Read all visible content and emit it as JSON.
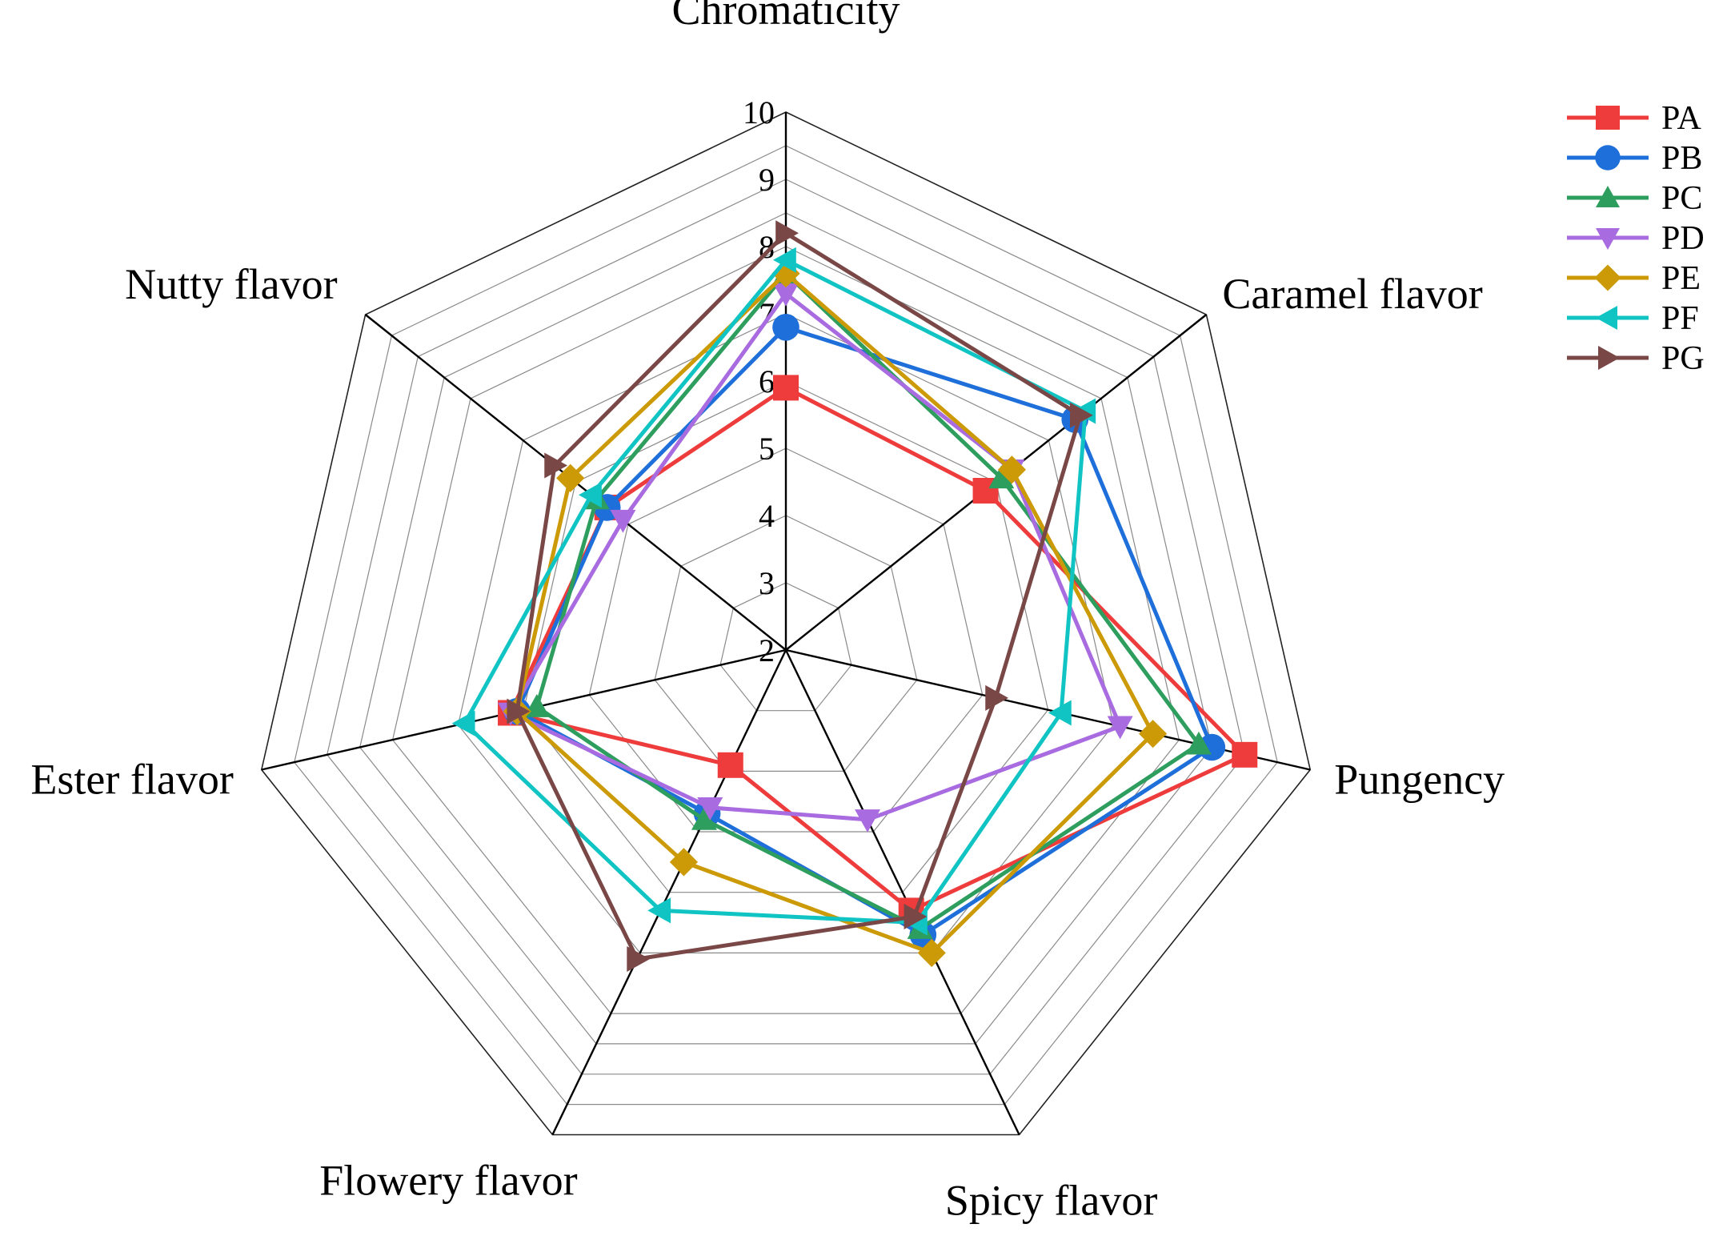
{
  "chart_data": {
    "type": "radar",
    "title": "",
    "axes": [
      "Chromaticity",
      "Caramel flavor",
      "Pungency",
      "Spicy flavor",
      "Flowery flavor",
      "Ester flavor",
      "Nutty flavor"
    ],
    "rlim": [
      2,
      10
    ],
    "ticks": [
      "2",
      "3",
      "4",
      "5",
      "6",
      "7",
      "8",
      "9",
      "10"
    ],
    "grid": true,
    "legend_position": "top-right",
    "series": [
      {
        "name": "PA",
        "color": "#EE3B3B",
        "marker": "square",
        "values": [
          5.9,
          5.8,
          9.0,
          6.3,
          3.9,
          6.2,
          5.4
        ]
      },
      {
        "name": "PB",
        "color": "#1E6FD9",
        "marker": "circle",
        "values": [
          6.8,
          7.5,
          8.5,
          6.7,
          4.7,
          6.1,
          5.4
        ]
      },
      {
        "name": "PC",
        "color": "#2E9E5E",
        "marker": "triangle-up",
        "values": [
          7.6,
          6.1,
          8.3,
          6.6,
          4.8,
          5.8,
          5.6
        ]
      },
      {
        "name": "PD",
        "color": "#A86BE0",
        "marker": "triangle-down",
        "values": [
          7.3,
          6.3,
          7.1,
          4.8,
          4.6,
          6.2,
          5.1
        ]
      },
      {
        "name": "PE",
        "color": "#CC9A06",
        "marker": "diamond",
        "values": [
          7.6,
          6.3,
          7.6,
          7.0,
          5.5,
          6.1,
          6.1
        ]
      },
      {
        "name": "PF",
        "color": "#11C4C4",
        "marker": "triangle-left",
        "values": [
          7.8,
          7.7,
          6.2,
          6.5,
          6.3,
          6.9,
          5.7
        ]
      },
      {
        "name": "PG",
        "color": "#7A4747",
        "marker": "triangle-right",
        "values": [
          8.2,
          7.6,
          5.2,
          6.4,
          7.1,
          6.1,
          6.4
        ]
      }
    ]
  }
}
